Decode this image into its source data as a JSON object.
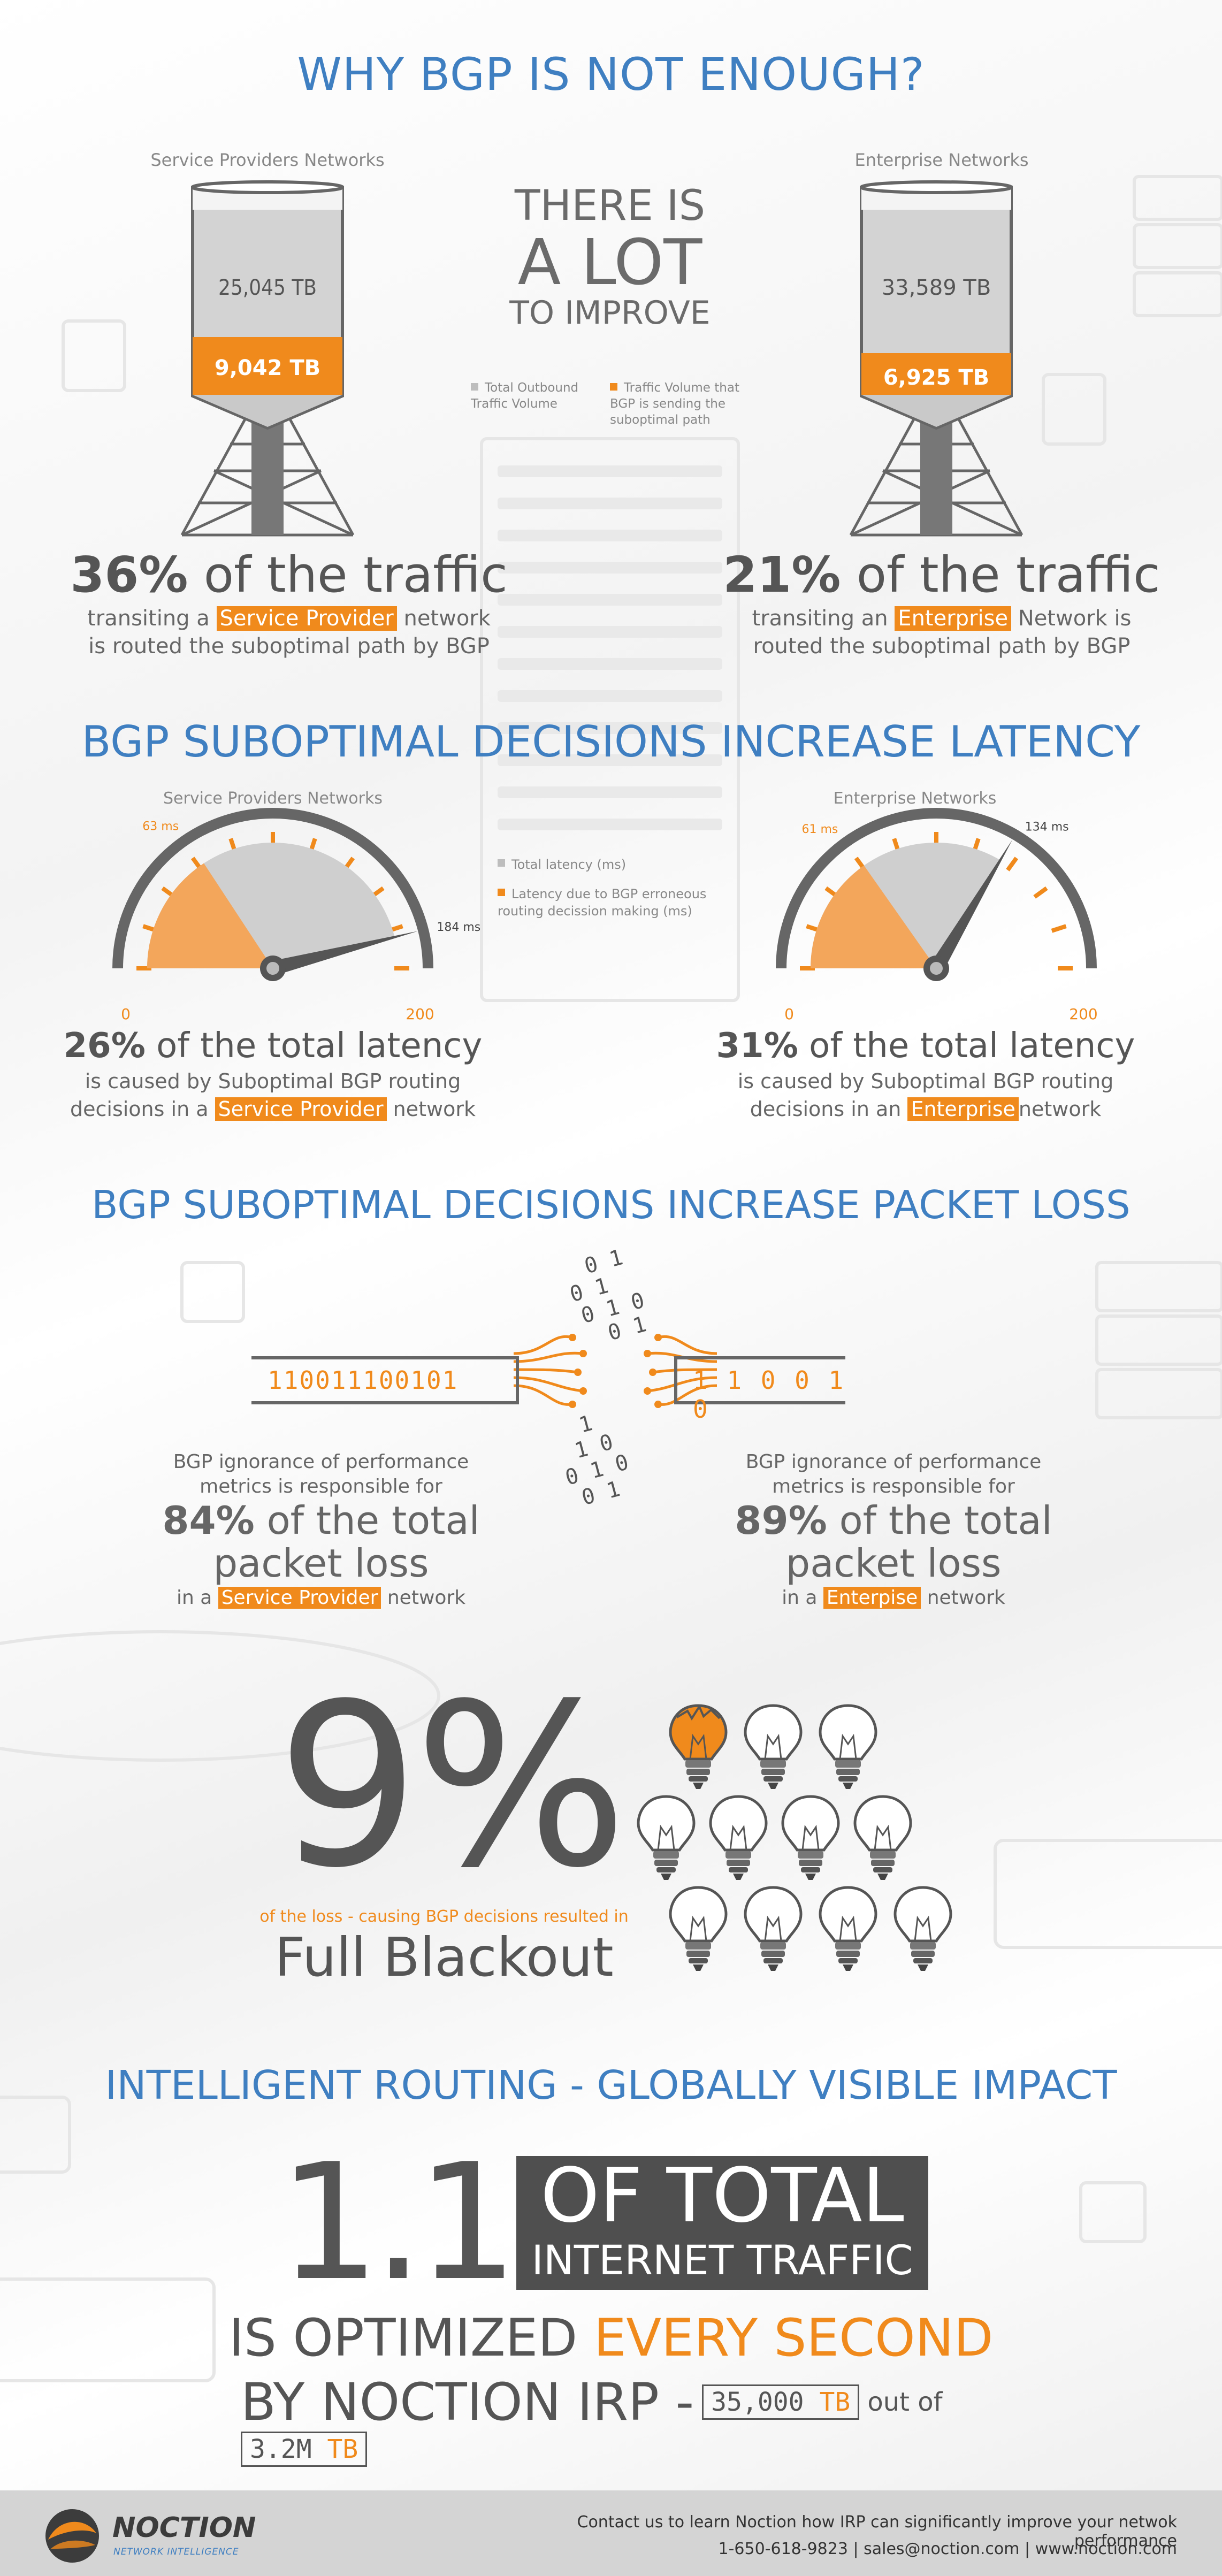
{
  "title": "WHY BGP IS NOT ENOUGH?",
  "section1": {
    "left": {
      "label": "Service Providers Networks",
      "total_tb": "25,045 TB",
      "suboptimal_tb": "9,042 TB",
      "pct": "36%",
      "pct_rest": " of the traffic",
      "line1a": "transiting a ",
      "line1hl": "Service Provider",
      "line1b": " network",
      "line2": "is routed the suboptimal path by BGP"
    },
    "center": {
      "line1": "THERE IS",
      "line2": "A LOT",
      "line3": "TO IMPROVE",
      "legend1": "Total Outbound Traffic Volume",
      "legend2": "Traffic Volume that BGP is sending the suboptimal path"
    },
    "right": {
      "label": "Enterprise Networks",
      "total_tb": "33,589 TB",
      "suboptimal_tb": "6,925 TB",
      "pct": "21%",
      "pct_rest": " of the traffic",
      "line1a": "transiting an ",
      "line1hl": "Enterprise",
      "line1b": " Network is",
      "line2": "routed the suboptimal path by BGP"
    }
  },
  "section2": {
    "title": "BGP SUBOPTIMAL DECISIONS INCREASE LATENCY",
    "left": {
      "label": "Service Providers Networks",
      "bgp_ms": "63 ms",
      "bgp_value": 63,
      "total_ms": "184 ms",
      "total_value": 184,
      "min": "0",
      "max": "200",
      "pct": "26%",
      "pct_rest": " of the total latency",
      "line1": "is caused by Suboptimal BGP routing",
      "line2a": "decisions in a ",
      "line2hl": "Service Provider",
      "line2b": " network"
    },
    "legend1": "Total latency (ms)",
    "legend2": "Latency due to BGP erroneous routing decission making (ms)",
    "right": {
      "label": "Enterprise Networks",
      "bgp_ms": "61 ms",
      "bgp_value": 61,
      "total_ms": "134 ms",
      "total_value": 134,
      "min": "0",
      "max": "200",
      "pct": "31%",
      "pct_rest": " of the total latency",
      "line1": "is caused by Suboptimal BGP routing",
      "line2a": "decisions in an ",
      "line2hl": "Enterprise",
      "line2b": "network"
    }
  },
  "section3": {
    "title": "BGP SUBOPTIMAL DECISIONS INCREASE PACKET LOSS",
    "bits_left": "110011100101",
    "bits_right": "1 1 0 0 1 0",
    "bits_top": [
      "0 1",
      "0 1",
      "0 1 0",
      "0 1"
    ],
    "bits_bottom": [
      "1",
      "1 0",
      "0 1 0",
      "0 1"
    ],
    "left": {
      "line1": "BGP ignorance of performance",
      "line2": "metrics is responsible for",
      "pct": "84%",
      "pct_rest": " of the total",
      "big2": "packet loss",
      "line3a": "in a ",
      "line3hl": "Service Provider",
      "line3b": " network"
    },
    "right": {
      "line1": "BGP ignorance of performance",
      "line2": "metrics is responsible for",
      "pct": "89%",
      "pct_rest": " of the total",
      "big2": "packet loss",
      "line3a": "in a ",
      "line3hl": "Enterpise",
      "line3b": " network"
    }
  },
  "section4": {
    "big": "9%",
    "caption": "of the loss - causing BGP decisions resulted in",
    "headline": "Full Blackout",
    "bulbs_total": 11,
    "bulbs_broken": 1
  },
  "section5": {
    "title": "INTELLIGENT ROUTING - GLOBALLY VISIBLE IMPACT",
    "big": "1.1%",
    "box1": "OF TOTAL",
    "box2": "INTERNET TRAFFIC",
    "line1a": "IS OPTIMIZED ",
    "line1b": "EVERY SECOND",
    "line2": "BY NOCTION IRP -",
    "tag1": "35,000",
    "tag1u": "TB",
    "outof": "out of",
    "tag2": "3.2M",
    "tag2u": "TB"
  },
  "footer": {
    "brand": "NOCTION",
    "tagline": "NETWORK INTELLIGENCE",
    "line1": "Contact us to learn Noction how IRP can significantly improve your netwok performance",
    "line2": "1-650-618-9823 | sales@noction.com | www.noction.com"
  },
  "colors": {
    "blue": "#3f7fc1",
    "orange": "#f08a1c",
    "dark": "#555555",
    "grey": "#bdbdbd"
  }
}
